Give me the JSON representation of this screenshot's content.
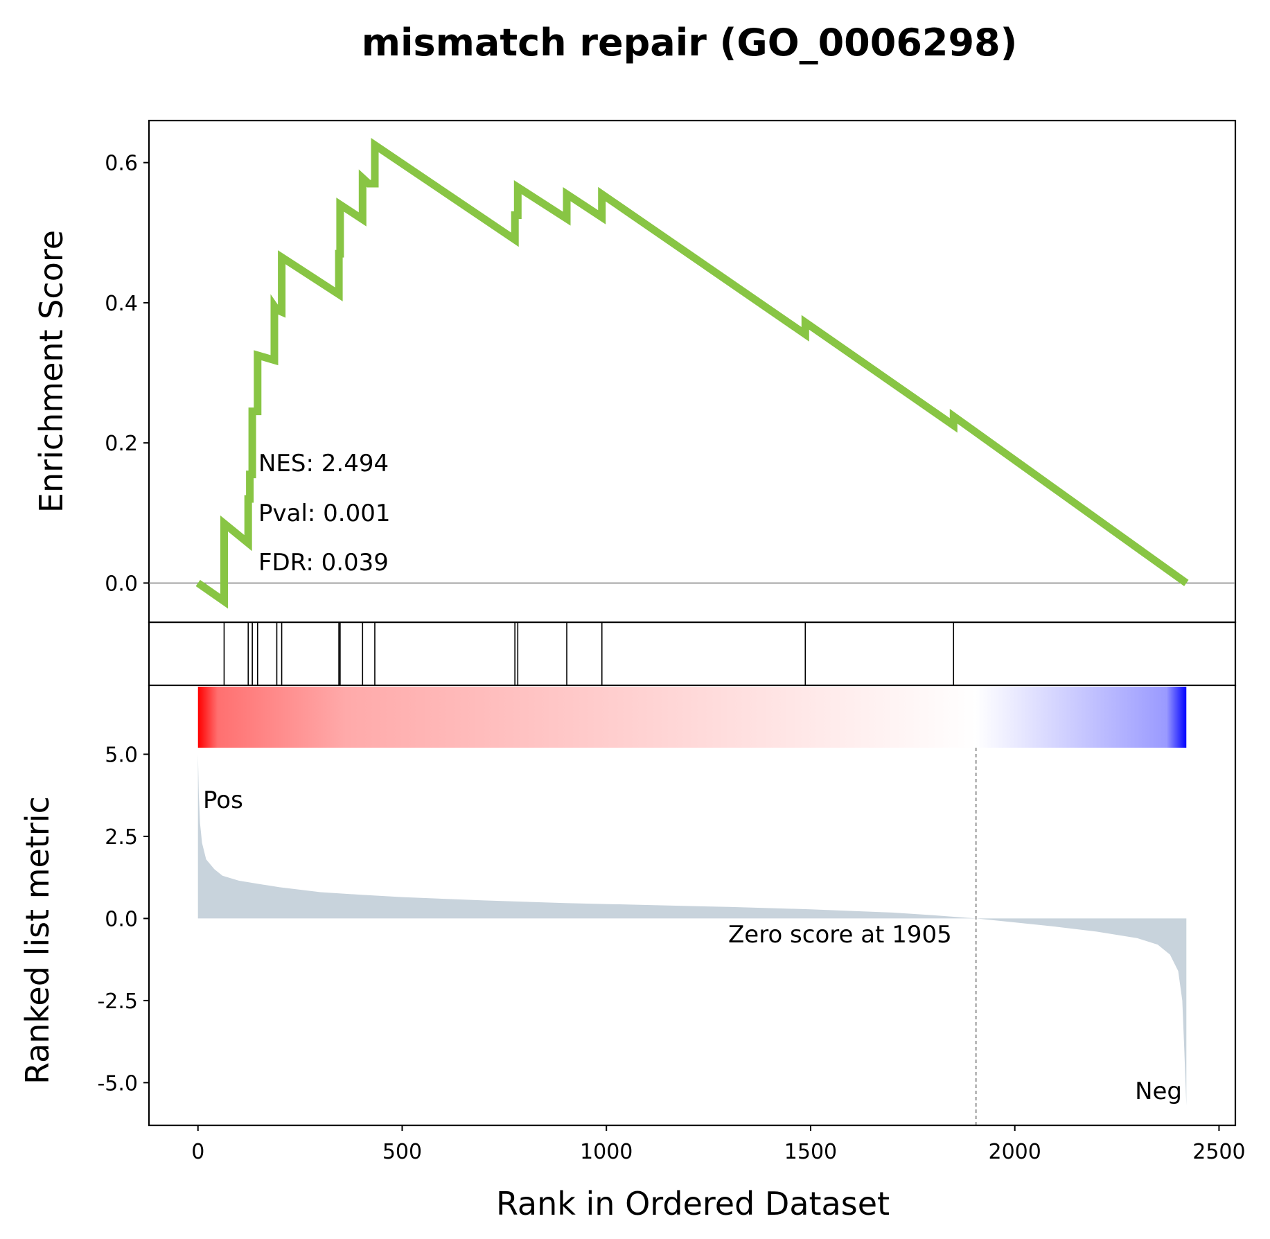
{
  "chart_data": {
    "type": "line",
    "title": "mismatch repair (GO_0006298)",
    "xlabel": "Rank in Ordered Dataset",
    "xlim": [
      -120,
      2540
    ],
    "x_ticks": [
      "0",
      "500",
      "1000",
      "1500",
      "2000",
      "2500"
    ],
    "x_tick_values": [
      0,
      500,
      1000,
      1500,
      2000,
      2500
    ],
    "enrichment": {
      "ylabel": "Enrichment Score",
      "ylim": [
        -0.056,
        0.66
      ],
      "y_ticks": [
        "0.0",
        "0.2",
        "0.4",
        "0.6"
      ],
      "y_tick_values": [
        0,
        0.2,
        0.4,
        0.6
      ],
      "color": "#88c544",
      "x": [
        0,
        64,
        64,
        123,
        123,
        127,
        127,
        133,
        133,
        146,
        146,
        187,
        187,
        193,
        193,
        205,
        205,
        345,
        345,
        348,
        348,
        403,
        403,
        418,
        418,
        433,
        433,
        776,
        776,
        783,
        783,
        903,
        903,
        989,
        989,
        1487,
        1487,
        1850,
        1850,
        2420
      ],
      "y": [
        0.0,
        -0.026,
        0.085,
        0.057,
        0.12,
        0.12,
        0.155,
        0.155,
        0.245,
        0.245,
        0.325,
        0.318,
        0.395,
        0.39,
        0.39,
        0.387,
        0.465,
        0.412,
        0.47,
        0.47,
        0.54,
        0.519,
        0.578,
        0.57,
        0.57,
        0.57,
        0.625,
        0.49,
        0.525,
        0.525,
        0.565,
        0.52,
        0.555,
        0.522,
        0.555,
        0.355,
        0.372,
        0.225,
        0.238,
        0.0
      ],
      "annotations": [
        "NES: 2.494",
        "Pval: 0.001",
        "FDR: 0.039"
      ]
    },
    "hits": [
      64,
      123,
      133,
      146,
      193,
      205,
      345,
      348,
      403,
      433,
      776,
      783,
      903,
      989,
      1487,
      1850
    ],
    "color_bar": {
      "colors": [
        "#ff0000",
        "#ffffff",
        "#0000ff"
      ],
      "zero_at": 1905,
      "range": [
        0,
        2420
      ]
    },
    "ranked_metric": {
      "ylabel": "Ranked list metric",
      "ylim": [
        -6.3,
        5.2
      ],
      "y_ticks": [
        "5.0",
        "2.5",
        "0.0",
        "-2.5",
        "-5.0"
      ],
      "y_tick_values": [
        5,
        2.5,
        0,
        -2.5,
        -5
      ],
      "fill_color": "#c8d3dc",
      "x": [
        0,
        2,
        5,
        10,
        20,
        40,
        60,
        100,
        150,
        200,
        300,
        400,
        500,
        700,
        900,
        1100,
        1300,
        1500,
        1700,
        1800,
        1905,
        2000,
        2100,
        2200,
        2300,
        2350,
        2380,
        2400,
        2410,
        2415,
        2420
      ],
      "y": [
        5.0,
        3.8,
        2.9,
        2.3,
        1.8,
        1.5,
        1.3,
        1.15,
        1.05,
        0.95,
        0.8,
        0.72,
        0.65,
        0.55,
        0.47,
        0.41,
        0.35,
        0.28,
        0.18,
        0.1,
        0.0,
        -0.12,
        -0.25,
        -0.4,
        -0.6,
        -0.8,
        -1.1,
        -1.6,
        -2.5,
        -4.0,
        -5.7
      ],
      "zero_label": "Zero score at 1905",
      "zero_rank": 1905,
      "pos_label": "Pos",
      "neg_label": "Neg",
      "pos_color": "#ff0000",
      "neg_color": "#0000ff"
    }
  }
}
